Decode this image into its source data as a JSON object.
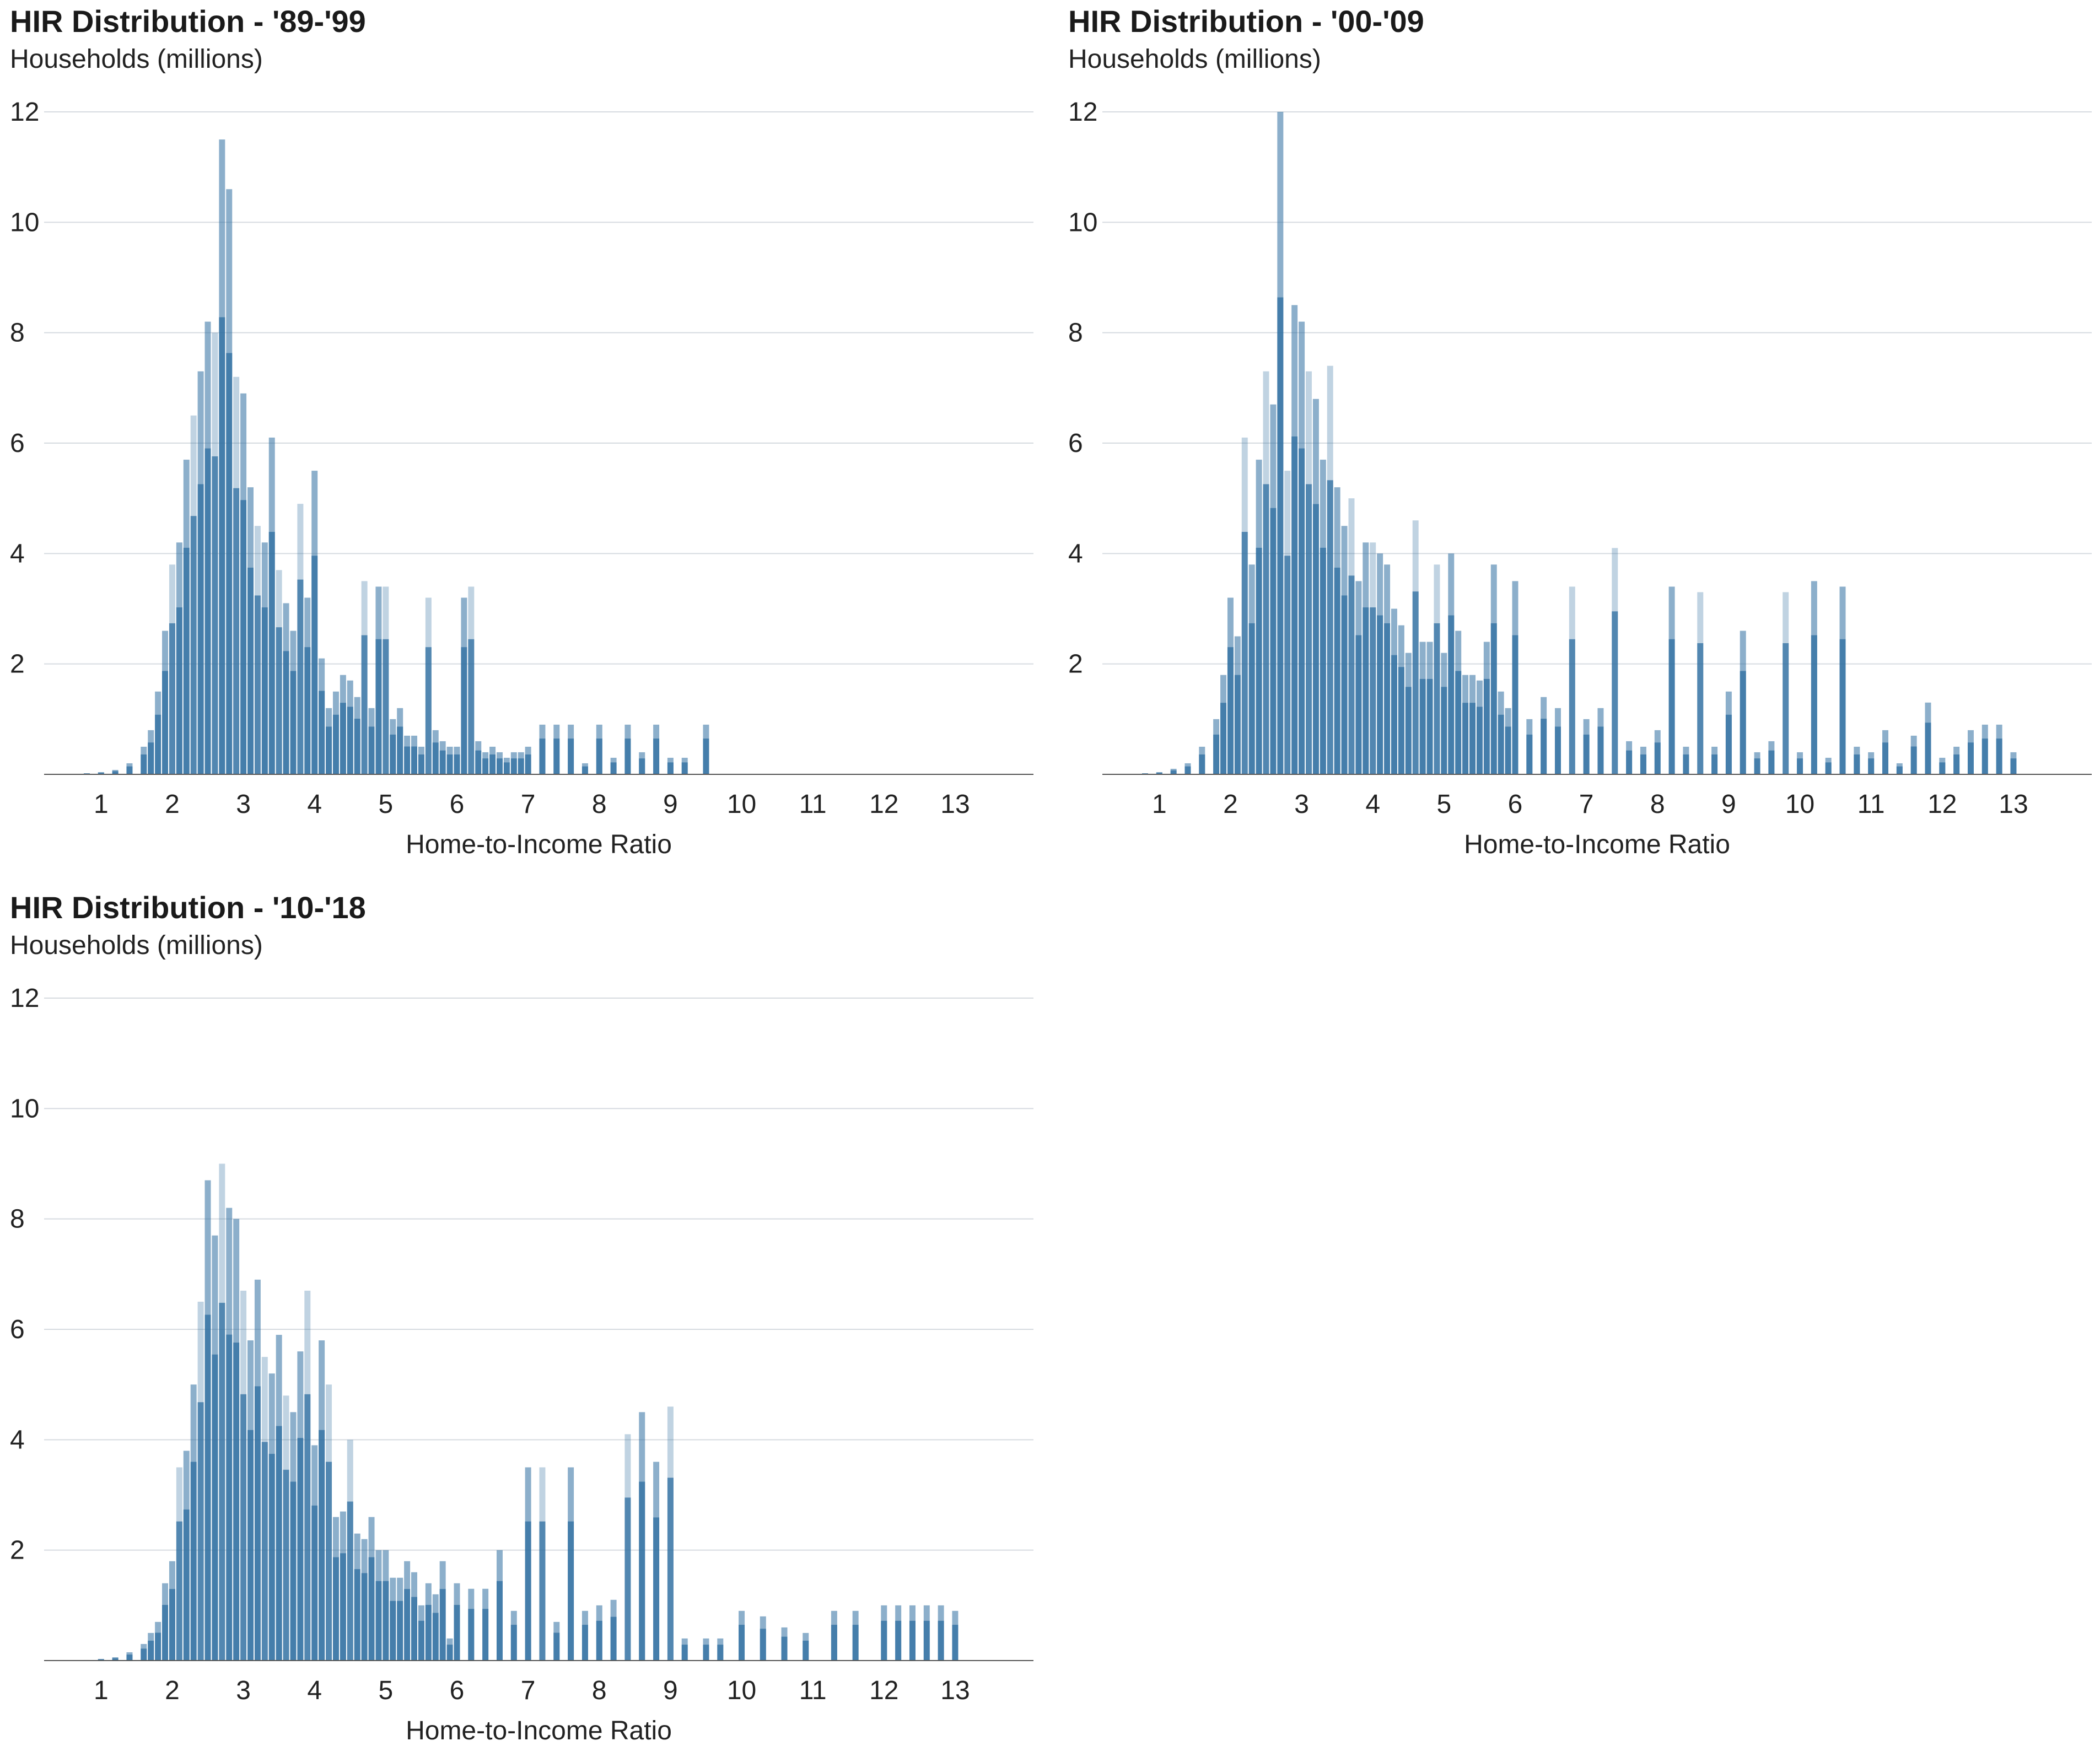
{
  "chart_data": [
    {
      "type": "bar",
      "title": "HIR Distribution - '89-'99",
      "subtitle": "Households (millions)",
      "xlabel": "Home-to-Income Ratio",
      "ylabel": "Households (millions)",
      "ylim": [
        0,
        12
      ],
      "xlim": [
        0.2,
        14.1
      ],
      "yticks": [
        "2",
        "4",
        "6",
        "8",
        "10",
        "12"
      ],
      "xticks": [
        "1",
        "2",
        "3",
        "4",
        "5",
        "6",
        "7",
        "8",
        "9",
        "10",
        "11",
        "12",
        "13"
      ],
      "grid": true,
      "bar_color": "#2e6ea0",
      "x": [
        0.6,
        0.8,
        1.0,
        1.2,
        1.4,
        1.6,
        1.7,
        1.8,
        1.9,
        2.0,
        2.1,
        2.2,
        2.3,
        2.4,
        2.5,
        2.6,
        2.7,
        2.8,
        2.9,
        3.0,
        3.1,
        3.2,
        3.3,
        3.4,
        3.5,
        3.6,
        3.7,
        3.8,
        3.9,
        4.0,
        4.1,
        4.2,
        4.3,
        4.4,
        4.5,
        4.6,
        4.7,
        4.8,
        4.9,
        5.0,
        5.1,
        5.2,
        5.3,
        5.4,
        5.5,
        5.6,
        5.7,
        5.8,
        5.9,
        6.0,
        6.1,
        6.2,
        6.3,
        6.4,
        6.5,
        6.6,
        6.7,
        6.8,
        6.9,
        7.0,
        7.2,
        7.4,
        7.6,
        7.8,
        8.0,
        8.2,
        8.4,
        8.6,
        8.8,
        9.0,
        9.2,
        9.5
      ],
      "values": [
        0.01,
        0.02,
        0.04,
        0.08,
        0.2,
        0.5,
        0.8,
        1.5,
        2.6,
        3.8,
        4.2,
        5.7,
        6.5,
        7.3,
        8.2,
        8.0,
        11.5,
        10.6,
        7.2,
        6.9,
        5.2,
        4.5,
        4.2,
        6.1,
        3.7,
        3.1,
        2.6,
        4.9,
        3.2,
        5.5,
        2.1,
        1.2,
        1.5,
        1.8,
        1.7,
        1.4,
        3.5,
        1.2,
        3.4,
        3.4,
        1.0,
        1.2,
        0.7,
        0.7,
        0.5,
        3.2,
        0.8,
        0.6,
        0.5,
        0.5,
        3.2,
        3.4,
        0.6,
        0.4,
        0.5,
        0.4,
        0.3,
        0.4,
        0.4,
        0.5,
        0.9,
        0.9,
        0.9,
        0.2,
        0.9,
        0.3,
        0.9,
        0.4,
        0.9,
        0.3,
        0.3,
        0.9
      ]
    },
    {
      "type": "bar",
      "title": "HIR Distribution - '00-'09",
      "subtitle": "Households (millions)",
      "xlabel": "Home-to-Income Ratio",
      "ylabel": "Households (millions)",
      "ylim": [
        0,
        12
      ],
      "xlim": [
        0.2,
        14.1
      ],
      "yticks": [
        "2",
        "4",
        "6",
        "8",
        "10",
        "12"
      ],
      "xticks": [
        "1",
        "2",
        "3",
        "4",
        "5",
        "6",
        "7",
        "8",
        "9",
        "10",
        "11",
        "12",
        "13"
      ],
      "grid": true,
      "bar_color": "#2e6ea0",
      "x": [
        0.8,
        1.0,
        1.2,
        1.4,
        1.6,
        1.8,
        1.9,
        2.0,
        2.1,
        2.2,
        2.3,
        2.4,
        2.5,
        2.6,
        2.7,
        2.8,
        2.9,
        3.0,
        3.1,
        3.2,
        3.3,
        3.4,
        3.5,
        3.6,
        3.7,
        3.8,
        3.9,
        4.0,
        4.1,
        4.2,
        4.3,
        4.4,
        4.5,
        4.6,
        4.7,
        4.8,
        4.9,
        5.0,
        5.1,
        5.2,
        5.3,
        5.4,
        5.5,
        5.6,
        5.7,
        5.8,
        5.9,
        6.0,
        6.2,
        6.4,
        6.6,
        6.8,
        7.0,
        7.2,
        7.4,
        7.6,
        7.8,
        8.0,
        8.2,
        8.4,
        8.6,
        8.8,
        9.0,
        9.2,
        9.4,
        9.6,
        9.8,
        10.0,
        10.2,
        10.4,
        10.6,
        10.8,
        11.0,
        11.2,
        11.4,
        11.6,
        11.8,
        12.0,
        12.2,
        12.4,
        12.6,
        12.8,
        13.0
      ],
      "values": [
        0.02,
        0.04,
        0.1,
        0.2,
        0.5,
        1.0,
        1.8,
        3.2,
        2.5,
        6.1,
        3.8,
        5.7,
        7.3,
        6.7,
        12.0,
        5.5,
        8.5,
        8.2,
        7.3,
        6.8,
        5.7,
        7.4,
        5.2,
        4.5,
        5.0,
        3.5,
        4.2,
        4.2,
        4.0,
        3.8,
        3.0,
        2.7,
        2.2,
        4.6,
        2.4,
        2.4,
        3.8,
        2.2,
        4.0,
        2.6,
        1.8,
        1.8,
        1.7,
        2.4,
        3.8,
        1.5,
        1.2,
        3.5,
        1.0,
        1.4,
        1.2,
        3.4,
        1.0,
        1.2,
        4.1,
        0.6,
        0.5,
        0.8,
        3.4,
        0.5,
        3.3,
        0.5,
        1.5,
        2.6,
        0.4,
        0.6,
        3.3,
        0.4,
        3.5,
        0.3,
        3.4,
        0.5,
        0.4,
        0.8,
        0.2,
        0.7,
        1.3,
        0.3,
        0.5,
        0.8,
        0.9,
        0.9,
        0.4
      ]
    },
    {
      "type": "bar",
      "title": "HIR Distribution - '10-'18",
      "subtitle": "Households (millions)",
      "xlabel": "Home-to-Income Ratio",
      "ylabel": "Households (millions)",
      "ylim": [
        0,
        12
      ],
      "xlim": [
        0.2,
        14.1
      ],
      "yticks": [
        "2",
        "4",
        "6",
        "8",
        "10",
        "12"
      ],
      "xticks": [
        "1",
        "2",
        "3",
        "4",
        "5",
        "6",
        "7",
        "8",
        "9",
        "10",
        "11",
        "12",
        "13"
      ],
      "grid": true,
      "bar_color": "#2e6ea0",
      "x": [
        0.8,
        1.0,
        1.2,
        1.4,
        1.6,
        1.7,
        1.8,
        1.9,
        2.0,
        2.1,
        2.2,
        2.3,
        2.4,
        2.5,
        2.6,
        2.7,
        2.8,
        2.9,
        3.0,
        3.1,
        3.2,
        3.3,
        3.4,
        3.5,
        3.6,
        3.7,
        3.8,
        3.9,
        4.0,
        4.1,
        4.2,
        4.3,
        4.4,
        4.5,
        4.6,
        4.7,
        4.8,
        4.9,
        5.0,
        5.1,
        5.2,
        5.3,
        5.4,
        5.5,
        5.6,
        5.7,
        5.8,
        5.9,
        6.0,
        6.2,
        6.4,
        6.6,
        6.8,
        7.0,
        7.2,
        7.4,
        7.6,
        7.8,
        8.0,
        8.2,
        8.4,
        8.6,
        8.8,
        9.0,
        9.2,
        9.5,
        9.7,
        10.0,
        10.3,
        10.6,
        10.9,
        11.3,
        11.6,
        12.0,
        12.2,
        12.4,
        12.6,
        12.8,
        13.0
      ],
      "values": [
        0.01,
        0.03,
        0.06,
        0.15,
        0.3,
        0.5,
        0.7,
        1.4,
        1.8,
        3.5,
        3.8,
        5.0,
        6.5,
        8.7,
        7.7,
        9.0,
        8.2,
        8.0,
        6.7,
        5.8,
        6.9,
        5.5,
        5.2,
        5.9,
        4.8,
        4.5,
        5.6,
        6.7,
        3.9,
        5.8,
        5.0,
        2.6,
        2.7,
        4.0,
        2.3,
        2.2,
        2.6,
        2.0,
        2.0,
        1.5,
        1.5,
        1.8,
        1.6,
        1.0,
        1.4,
        1.2,
        1.8,
        0.4,
        1.4,
        1.3,
        1.3,
        2.0,
        0.9,
        3.5,
        3.5,
        0.7,
        3.5,
        0.9,
        1.0,
        1.1,
        4.1,
        4.5,
        3.6,
        4.6,
        0.4,
        0.4,
        0.4,
        0.9,
        0.8,
        0.6,
        0.5,
        0.9,
        0.9,
        1.0,
        1.0,
        1.0,
        1.0,
        1.0,
        0.9
      ]
    }
  ]
}
